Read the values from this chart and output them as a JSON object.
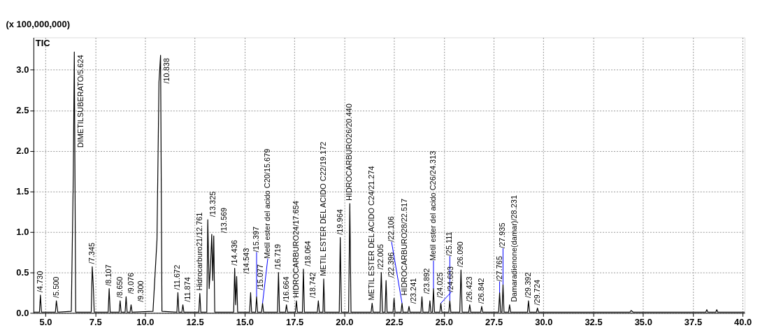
{
  "chart_data": {
    "type": "line",
    "ylabel": "(x 100,000,000)",
    "x": [
      4.4,
      4.7,
      4.75,
      4.8,
      5.5,
      5.55,
      5.62,
      6.3,
      6.4,
      6.45,
      6.52,
      7.3,
      7.35,
      7.4,
      7.45,
      8.15,
      8.2,
      8.25,
      8.7,
      8.75,
      8.8,
      9.0,
      9.05,
      9.1,
      9.25,
      9.3,
      9.35,
      10.4,
      10.6,
      10.7,
      10.78,
      10.85,
      11.6,
      11.65,
      11.7,
      11.85,
      11.9,
      11.95,
      12.7,
      12.75,
      12.8,
      13.1,
      13.15,
      13.22,
      13.3,
      13.35,
      13.4,
      13.45,
      13.5,
      14.45,
      14.5,
      14.55,
      14.6,
      14.65,
      15.25,
      15.3,
      15.35,
      15.55,
      15.6,
      15.65,
      15.85,
      15.9,
      15.95,
      16.65,
      16.7,
      16.75,
      17.05,
      17.1,
      17.15,
      17.55,
      17.6,
      17.65,
      17.9,
      17.95,
      18.0,
      18.65,
      18.7,
      18.75,
      18.93,
      18.97,
      19.02,
      19.75,
      19.8,
      19.86,
      20.22,
      20.28,
      20.34,
      21.35,
      21.4,
      21.45,
      21.8,
      21.86,
      21.92,
      22.05,
      22.1,
      22.15,
      22.45,
      22.5,
      22.55,
      22.85,
      22.9,
      22.95,
      23.2,
      23.25,
      23.3,
      23.85,
      23.9,
      23.95,
      24.25,
      24.3,
      24.35,
      24.43,
      24.48,
      24.53,
      24.8,
      24.85,
      24.9,
      25.25,
      25.3,
      25.35,
      25.8,
      25.86,
      25.92,
      26.25,
      26.3,
      26.35,
      26.85,
      26.9,
      26.95,
      27.75,
      27.8,
      27.85,
      27.92,
      27.97,
      28.02,
      28.25,
      28.3,
      28.35,
      29.2,
      29.25,
      29.3,
      29.65,
      29.7,
      29.75,
      34.35,
      34.4,
      34.5,
      38.15,
      38.2,
      38.25,
      38.65,
      38.7,
      38.75,
      40.1
    ],
    "series": [
      {
        "color": "#000000",
        "values": [
          0.01,
          0.01,
          0.22,
          0.01,
          0.01,
          0.15,
          0.01,
          0.02,
          1.7,
          3.22,
          0.01,
          0.01,
          0.57,
          0.35,
          0.01,
          0.01,
          0.3,
          0.01,
          0.01,
          0.15,
          0.01,
          0.01,
          0.2,
          0.01,
          0.01,
          0.1,
          0.01,
          0.02,
          0.9,
          2.85,
          3.18,
          0.02,
          0.01,
          0.25,
          0.01,
          0.01,
          0.1,
          0.01,
          0.01,
          0.24,
          0.01,
          0.01,
          1.15,
          0.3,
          0.65,
          0.97,
          0.4,
          0.95,
          0.01,
          0.01,
          0.55,
          0.1,
          0.45,
          0.01,
          0.01,
          0.25,
          0.01,
          0.01,
          0.2,
          0.01,
          0.01,
          0.12,
          0.01,
          0.01,
          0.5,
          0.01,
          0.01,
          0.1,
          0.01,
          0.01,
          0.15,
          0.01,
          0.01,
          0.54,
          0.01,
          0.01,
          0.15,
          0.01,
          0.01,
          0.42,
          0.01,
          0.01,
          0.93,
          0.01,
          0.01,
          1.35,
          0.01,
          0.01,
          0.12,
          0.01,
          0.01,
          0.5,
          0.01,
          0.01,
          0.4,
          0.01,
          0.01,
          0.18,
          0.01,
          0.01,
          0.12,
          0.01,
          0.01,
          0.08,
          0.01,
          0.01,
          0.2,
          0.01,
          0.01,
          0.15,
          0.01,
          0.01,
          0.3,
          0.01,
          0.01,
          0.12,
          0.01,
          0.01,
          0.15,
          0.01,
          0.01,
          0.53,
          0.01,
          0.01,
          0.1,
          0.01,
          0.01,
          0.08,
          0.01,
          0.01,
          0.25,
          0.01,
          0.01,
          0.35,
          0.01,
          0.01,
          0.1,
          0.01,
          0.01,
          0.15,
          0.01,
          0.01,
          0.06,
          0.01,
          0.01,
          0.03,
          0.01,
          0.01,
          0.04,
          0.01,
          0.01,
          0.04,
          0.01,
          0.01
        ]
      }
    ],
    "xlim": [
      4.4,
      40.1
    ],
    "xticks": [
      {
        "value": 5,
        "label": "5.0"
      },
      7.5,
      {
        "value": 10,
        "label": "10.0"
      },
      12.5,
      {
        "value": 15,
        "label": "15.0"
      },
      17.5,
      {
        "value": 20,
        "label": "20.0"
      },
      22.5,
      {
        "value": 25,
        "label": "25.0"
      },
      27.5,
      {
        "value": 30,
        "label": "30.0"
      },
      32.5,
      {
        "value": 35,
        "label": "35.0"
      },
      37.5,
      {
        "value": 40,
        "label": "40.0"
      }
    ],
    "ylim": [
      0,
      3.4
    ],
    "yticks": [
      {
        "value": 0,
        "label": "0.0"
      },
      0.5,
      {
        "value": 1,
        "label": "1.0"
      },
      1.5,
      {
        "value": 2,
        "label": "2.0"
      },
      2.5,
      {
        "value": 3,
        "label": "3.0"
      }
    ],
    "grid": true,
    "annotations": [
      "TIC",
      {
        "text": "/4.730",
        "x": 4.75,
        "y": 0.22
      },
      {
        "text": "/5.500",
        "x": 5.55,
        "y": 0.15
      },
      {
        "text": "DIMETILSUBERATO/5.624",
        "x": 6.45,
        "y": 3.22
      },
      {
        "text": "/7.345",
        "x": 7.35,
        "y": 0.57
      },
      {
        "text": "/8.107",
        "x": 8.2,
        "y": 0.3
      },
      {
        "text": "/8.650",
        "x": 8.75,
        "y": 0.15
      },
      {
        "text": "/9.076",
        "x": 9.05,
        "y": 0.2
      },
      {
        "text": "/9.300",
        "x": 9.3,
        "y": 0.1
      },
      {
        "text": "/10.838",
        "x": 10.78,
        "y": 3.18
      },
      {
        "text": "/11.672",
        "x": 11.65,
        "y": 0.25
      },
      {
        "text": "/11.874",
        "x": 11.9,
        "y": 0.1
      },
      {
        "text": "Hidrocarburo21/12.761",
        "x": 12.75,
        "y": 0.24
      },
      {
        "text": "/13.325",
        "x": 13.15,
        "y": 1.15
      },
      {
        "text": "/13.569",
        "x": 13.45,
        "y": 0.95
      },
      {
        "text": "/14.436",
        "x": 14.5,
        "y": 0.55
      },
      {
        "text": "/14.543",
        "x": 14.6,
        "y": 0.45
      },
      {
        "text": "/15.077",
        "x": 15.3,
        "y": 0.25
      },
      {
        "text": "/15.397",
        "x": 15.6,
        "y": 0.2
      },
      {
        "text": "Metil ester del acido C20/15.679",
        "x": 15.9,
        "y": 0.12
      },
      {
        "text": "/16.719",
        "x": 16.7,
        "y": 0.5
      },
      {
        "text": "/16.664",
        "x": 17.1,
        "y": 0.1
      },
      {
        "text": "HIDROCARBURO24/17.654",
        "x": 17.6,
        "y": 0.15
      },
      {
        "text": "/18.064",
        "x": 17.95,
        "y": 0.54
      },
      {
        "text": "/18.742",
        "x": 18.7,
        "y": 0.15
      },
      {
        "text": "METIL ESTER DEL ACIDO C22/19.172",
        "x": 18.97,
        "y": 0.42
      },
      {
        "text": "/19.964",
        "x": 19.8,
        "y": 0.93
      },
      {
        "text": "HIDROCARBURO26/20.440",
        "x": 20.28,
        "y": 1.35
      },
      {
        "text": "METIL ESTER DEL ACIDO C24/21.274",
        "x": 21.4,
        "y": 0.12
      },
      {
        "text": "/22.005",
        "x": 21.86,
        "y": 0.5
      },
      {
        "text": "/22.396",
        "x": 22.1,
        "y": 0.4
      },
      {
        "text": "HIDROCARBURO28/22.517",
        "x": 22.5,
        "y": 0.18
      },
      {
        "text": "/22.106",
        "x": 22.9,
        "y": 0.12
      },
      {
        "text": "/23.241",
        "x": 23.25,
        "y": 0.08
      },
      {
        "text": "/23.892",
        "x": 23.9,
        "y": 0.2
      },
      {
        "text": "/24.025",
        "x": 24.3,
        "y": 0.15
      },
      {
        "text": "Metil ester del acido C26/24.313",
        "x": 24.48,
        "y": 0.3
      },
      {
        "text": "/24.683",
        "x": 24.85,
        "y": 0.12
      },
      {
        "text": "/25.111",
        "x": 25.3,
        "y": 0.15
      },
      {
        "text": "/26.090",
        "x": 25.86,
        "y": 0.53
      },
      {
        "text": "/26.423",
        "x": 26.3,
        "y": 0.1
      },
      {
        "text": "/26.842",
        "x": 26.9,
        "y": 0.08
      },
      {
        "text": "/27.765",
        "x": 27.8,
        "y": 0.25
      },
      {
        "text": "/27.935",
        "x": 27.97,
        "y": 0.35
      },
      {
        "text": "Damaradienone(damar)/28.231",
        "x": 28.3,
        "y": 0.1
      },
      {
        "text": "/29.392",
        "x": 29.25,
        "y": 0.15
      },
      {
        "text": "/29.724",
        "x": 29.7,
        "y": 0.06
      }
    ]
  }
}
